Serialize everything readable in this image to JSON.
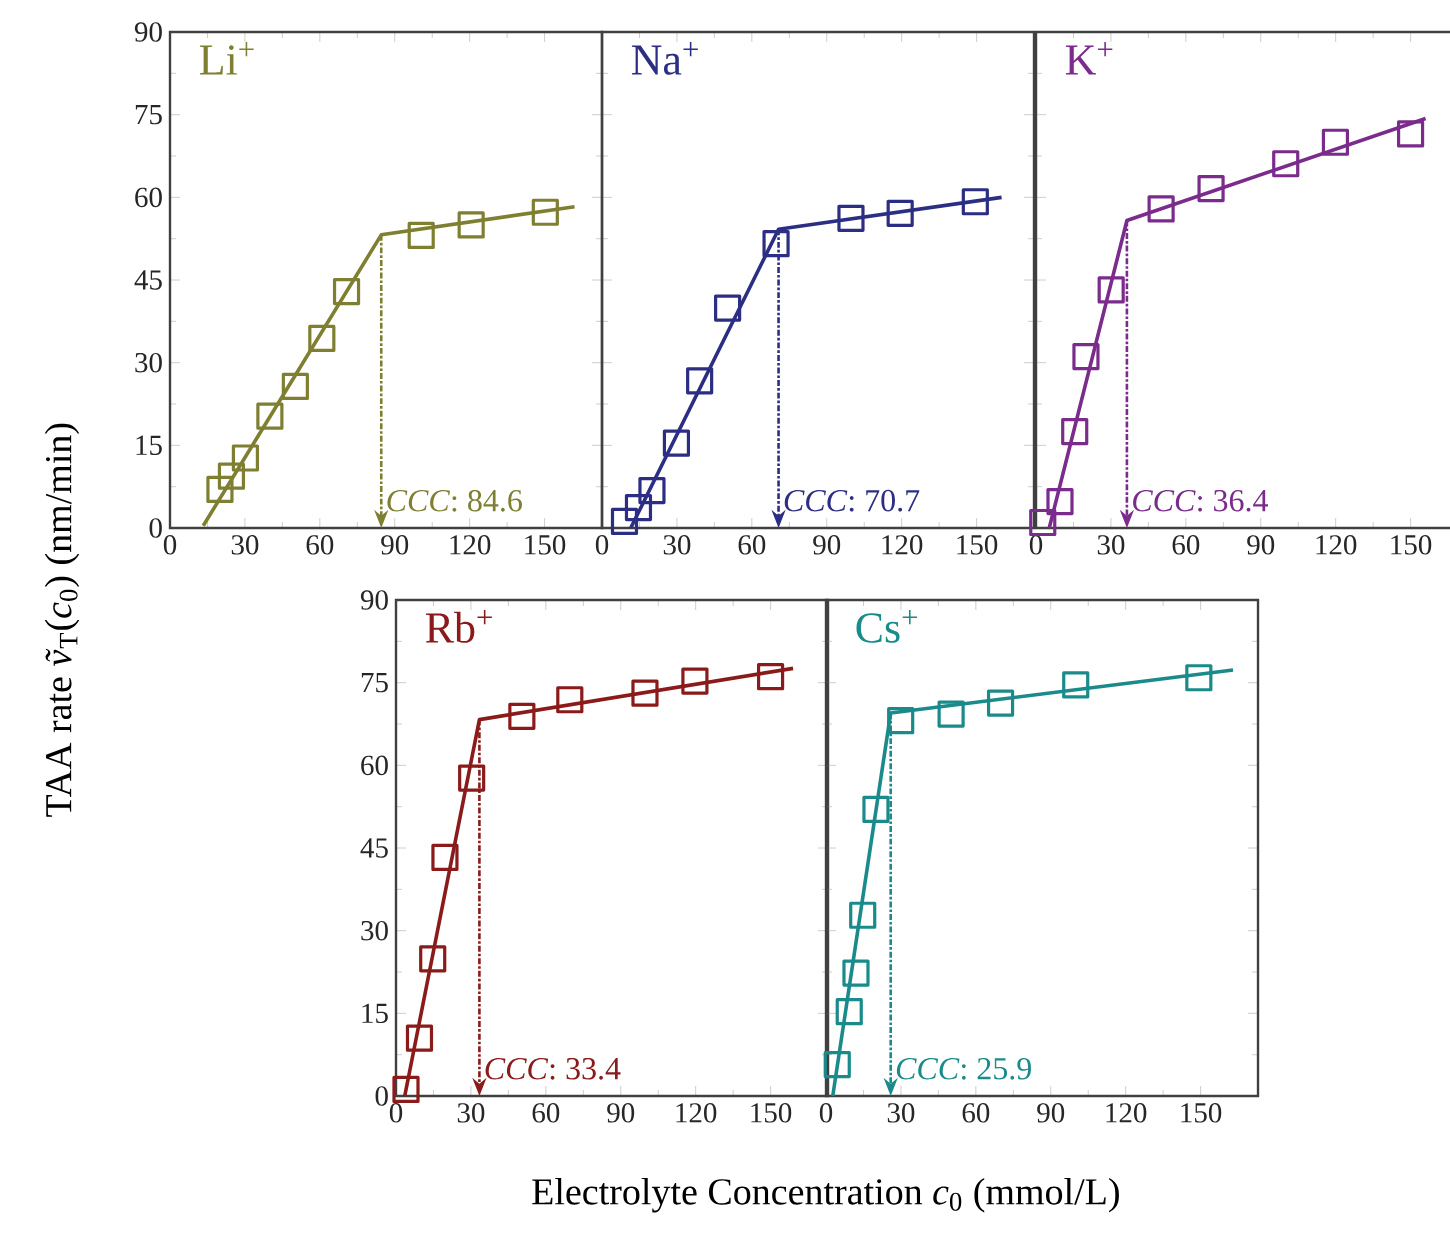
{
  "chart_data": [
    {
      "type": "scatter",
      "title": "Li$^{+}$",
      "ylabel": "TAA rate *ṽ*$_{T}$(*c*$_{0}$) (nm/min)",
      "xlim": [
        0,
        173
      ],
      "ylim": [
        0,
        90
      ],
      "xticks": [
        0,
        30,
        60,
        90,
        120,
        150
      ],
      "yticks": [
        0,
        15,
        30,
        45,
        60,
        75,
        90
      ],
      "marker": "square",
      "series": [
        {
          "color": "#7f7f32",
          "x": [
            20,
            24.6,
            30.2,
            40,
            50.2,
            60.8,
            70.7,
            100.6,
            120.6,
            150.3
          ],
          "values": [
            7,
            9.4,
            12.7,
            20.3,
            25.7,
            34.4,
            42.9,
            53.1,
            55,
            57.3
          ]
        },
        {
          "type": "line",
          "color": "#7f7f32",
          "marker": "none",
          "x": [
            13.3,
            84.6,
            162
          ],
          "values": [
            0.4,
            53.2,
            58.3
          ]
        }
      ],
      "annotations": [
        {
          "text": "*CCC*: 84.6",
          "x": 84.6,
          "y": 53.2
        }
      ]
    },
    {
      "type": "scatter",
      "title": "Na$^{+}$",
      "xlim": [
        0,
        173
      ],
      "ylim": [
        0,
        90
      ],
      "xticks": [
        0,
        30,
        60,
        90,
        120,
        150
      ],
      "yticks": [
        0,
        15,
        30,
        45,
        60,
        75,
        90
      ],
      "tick_labels": "x",
      "marker": "square",
      "series": [
        {
          "color": "#2b2e83",
          "x": [
            9,
            14.6,
            20,
            29.8,
            39.1,
            50.3,
            69.7,
            99.7,
            119.4,
            149.5
          ],
          "values": [
            1.2,
            3.7,
            6.8,
            15.4,
            26.7,
            39.9,
            51.6,
            56.2,
            57.1,
            59.2
          ]
        },
        {
          "type": "line",
          "color": "#2b2e83",
          "marker": "none",
          "x": [
            11.5,
            70.7,
            160
          ],
          "values": [
            0,
            54.2,
            60
          ]
        }
      ],
      "annotations": [
        {
          "text": "*CCC*: 70.7",
          "x": 70.7,
          "y": 54.2
        }
      ]
    },
    {
      "type": "scatter",
      "title": "K$^{+}$",
      "xlim": [
        0,
        173
      ],
      "ylim": [
        0,
        90
      ],
      "xticks": [
        0,
        30,
        60,
        90,
        120,
        150
      ],
      "yticks": [
        0,
        15,
        30,
        45,
        60,
        75,
        90
      ],
      "tick_labels": "x",
      "marker": "square",
      "series": [
        {
          "color": "#7b2b8b",
          "x": [
            2.7,
            9.6,
            15.5,
            20,
            30.1,
            50.1,
            70.1,
            100,
            119.9,
            150
          ],
          "values": [
            1,
            4.8,
            17.5,
            31.1,
            43.2,
            57.9,
            61.6,
            66.1,
            70,
            71.5
          ]
        },
        {
          "type": "line",
          "color": "#7b2b8b",
          "marker": "none",
          "x": [
            5.3,
            36.4,
            156
          ],
          "values": [
            0,
            55.8,
            74.3
          ]
        }
      ],
      "annotations": [
        {
          "text": "*CCC*: 36.4",
          "x": 36.4,
          "y": 55.8
        }
      ]
    },
    {
      "type": "scatter",
      "title": "Rb$^{+}$",
      "xlabel": "Electrolyte Concentration *c*$_{0}$ (mmol/L)",
      "xlim": [
        0,
        173
      ],
      "ylim": [
        0,
        90
      ],
      "xticks": [
        0,
        30,
        60,
        90,
        120,
        150
      ],
      "yticks": [
        0,
        15,
        30,
        45,
        60,
        75,
        90
      ],
      "marker": "square",
      "series": [
        {
          "color": "#8b1a1a",
          "x": [
            4,
            9.4,
            14.7,
            19.6,
            30.3,
            50.4,
            69.6,
            99.7,
            119.7,
            150
          ],
          "values": [
            1.2,
            10.5,
            24.9,
            43.3,
            57.7,
            68.9,
            71.9,
            73.1,
            75.3,
            76.1
          ]
        },
        {
          "type": "line",
          "color": "#8b1a1a",
          "marker": "none",
          "x": [
            3.5,
            33.4,
            159
          ],
          "values": [
            0,
            68.3,
            77.6
          ]
        }
      ],
      "annotations": [
        {
          "text": "*CCC*: 33.4",
          "x": 33.4,
          "y": 68.3
        }
      ]
    },
    {
      "type": "scatter",
      "title": "Cs$^{+}$",
      "xlim": [
        0,
        173
      ],
      "ylim": [
        0,
        90
      ],
      "xticks": [
        0,
        30,
        60,
        90,
        120,
        150
      ],
      "yticks": [
        0,
        15,
        30,
        45,
        60,
        75,
        90
      ],
      "tick_labels": "x",
      "marker": "square",
      "series": [
        {
          "color": "#1a8a8a",
          "x": [
            4.5,
            9.3,
            12,
            14.7,
            20,
            29.9,
            50.1,
            69.9,
            100,
            149.3
          ],
          "values": [
            5.7,
            15.3,
            22.3,
            32.8,
            52,
            68.1,
            69.3,
            71.3,
            74.6,
            75.9
          ]
        },
        {
          "type": "line",
          "color": "#1a8a8a",
          "marker": "none",
          "x": [
            2.7,
            25.9,
            163
          ],
          "values": [
            0,
            69.5,
            77.3
          ]
        }
      ],
      "annotations": [
        {
          "text": "*CCC*: 25.9",
          "x": 25.9,
          "y": 69.5
        }
      ]
    }
  ]
}
